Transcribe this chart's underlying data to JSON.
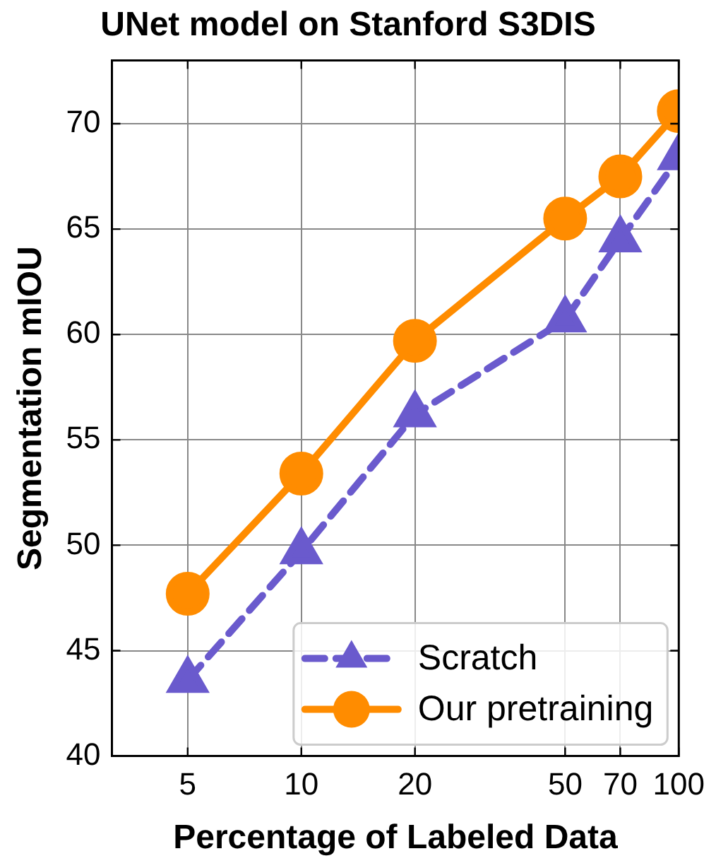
{
  "chart_data": {
    "type": "line",
    "title": "UNet model on Stanford S3DIS",
    "xlabel": "Percentage of Labeled Data",
    "ylabel": "Segmentation mIOU",
    "x": [
      5,
      10,
      20,
      50,
      70,
      100
    ],
    "log": "x",
    "xlim": [
      3.15,
      100
    ],
    "xticks": [
      5,
      10,
      20,
      50,
      70,
      100
    ],
    "ylim": [
      40,
      73
    ],
    "yticks": [
      40,
      45,
      50,
      55,
      60,
      65,
      70
    ],
    "grid": true,
    "legend": "bottom right",
    "series": [
      {
        "name": "Scratch",
        "color": "#6a5acd",
        "marker": "triangle",
        "line_style": "dashed",
        "values": [
          43.6,
          49.7,
          56.2,
          60.7,
          64.5,
          68.4
        ]
      },
      {
        "name": "Our pretraining",
        "color": "#ff8c00",
        "marker": "circle",
        "line_style": "solid",
        "values": [
          47.7,
          53.4,
          59.7,
          65.5,
          67.5,
          70.6
        ]
      }
    ]
  }
}
